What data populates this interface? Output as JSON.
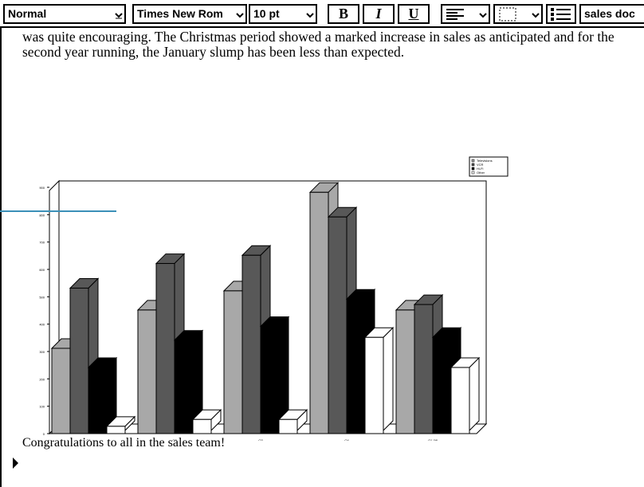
{
  "toolbar": {
    "style_value": "Normal",
    "font_value": "Times New Rom",
    "size_value": "10 pt",
    "bold_label": "B",
    "italic_label": "I",
    "underline_label": "U",
    "doc_title": "sales doc"
  },
  "document": {
    "paragraph": "was quite encouraging.  The Christmas period showed a marked increase in sales as anticipated and for the second year running, the January slump has been less than expected.",
    "closing": "Congratulations to all in the sales team!"
  },
  "chart_data": {
    "type": "bar",
    "categories": [
      "Q1",
      "Q2",
      "Q3",
      "Q4",
      "Q1 '98"
    ],
    "series": [
      {
        "name": "Televisions",
        "color": "#a8a8a8",
        "values": [
          300,
          440,
          510,
          870,
          440
        ]
      },
      {
        "name": "VCR",
        "color": "#585858",
        "values": [
          520,
          610,
          640,
          780,
          460
        ]
      },
      {
        "name": "Hi-Fi",
        "color": "#000000",
        "values": [
          230,
          330,
          380,
          480,
          340
        ]
      },
      {
        "name": "Other",
        "color": "#ffffff",
        "values": [
          15,
          40,
          40,
          340,
          230
        ]
      }
    ],
    "yticks": [
      "0",
      "100",
      "200",
      "300",
      "400",
      "500",
      "600",
      "700",
      "800",
      "900"
    ],
    "ylim": [
      0,
      900
    ],
    "legend_position": "top-right",
    "grid": false
  }
}
